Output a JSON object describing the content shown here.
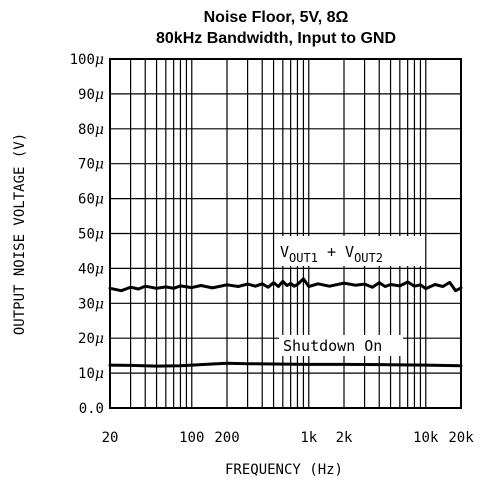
{
  "chart_data": {
    "type": "line",
    "title": "Noise Floor, 5V, 8Ω",
    "subtitle": "80kHz Bandwidth, Input to GND",
    "xlabel": "FREQUENCY (Hz)",
    "ylabel": "OUTPUT NOISE VOLTAGE (V)",
    "xscale": "log",
    "xlim": [
      20,
      20000
    ],
    "ylim": [
      0,
      100
    ],
    "y_unit_label": "μ",
    "grid": true,
    "x_ticks": [
      {
        "value": 20,
        "label": "20"
      },
      {
        "value": 100,
        "label": "100"
      },
      {
        "value": 200,
        "label": "200"
      },
      {
        "value": 1000,
        "label": "1k"
      },
      {
        "value": 2000,
        "label": "2k"
      },
      {
        "value": 10000,
        "label": "10k"
      },
      {
        "value": 20000,
        "label": "20k"
      }
    ],
    "y_ticks": [
      {
        "value": 0,
        "label": "0.0"
      },
      {
        "value": 10,
        "label": "10"
      },
      {
        "value": 20,
        "label": "20"
      },
      {
        "value": 30,
        "label": "30"
      },
      {
        "value": 40,
        "label": "40"
      },
      {
        "value": 50,
        "label": "50"
      },
      {
        "value": 60,
        "label": "60"
      },
      {
        "value": 70,
        "label": "70"
      },
      {
        "value": 80,
        "label": "80"
      },
      {
        "value": 90,
        "label": "90"
      },
      {
        "value": 100,
        "label": "100"
      }
    ],
    "series": [
      {
        "label_parts": [
          "V",
          "OUT1",
          " + V",
          "OUT2"
        ],
        "x": [
          20,
          25,
          30,
          35,
          40,
          50,
          60,
          70,
          80,
          100,
          120,
          150,
          200,
          250,
          300,
          350,
          400,
          450,
          500,
          550,
          600,
          650,
          700,
          750,
          800,
          900,
          1000,
          1200,
          1500,
          2000,
          2500,
          3000,
          3500,
          4000,
          4500,
          5000,
          6000,
          7000,
          8000,
          9000,
          10000,
          12000,
          14000,
          16000,
          18000,
          20000
        ],
        "y": [
          34.3,
          33.6,
          34.6,
          34.1,
          34.9,
          34.3,
          34.7,
          34.3,
          35.0,
          34.5,
          35.1,
          34.4,
          35.3,
          34.8,
          35.5,
          34.9,
          35.6,
          34.6,
          35.9,
          34.8,
          36.3,
          35.1,
          35.7,
          34.9,
          35.4,
          37.0,
          34.8,
          35.6,
          34.9,
          35.8,
          35.2,
          35.5,
          34.6,
          35.9,
          34.8,
          35.4,
          35.0,
          36.1,
          34.9,
          35.3,
          34.2,
          35.4,
          34.8,
          36.0,
          33.6,
          34.4
        ]
      },
      {
        "name": "Shutdown On",
        "x": [
          20,
          30,
          50,
          80,
          100,
          150,
          200,
          300,
          500,
          1000,
          2000,
          5000,
          10000,
          20000
        ],
        "y": [
          12.3,
          12.2,
          12.0,
          12.1,
          12.3,
          12.6,
          12.8,
          12.7,
          12.6,
          12.5,
          12.5,
          12.4,
          12.3,
          12.1
        ]
      }
    ]
  }
}
